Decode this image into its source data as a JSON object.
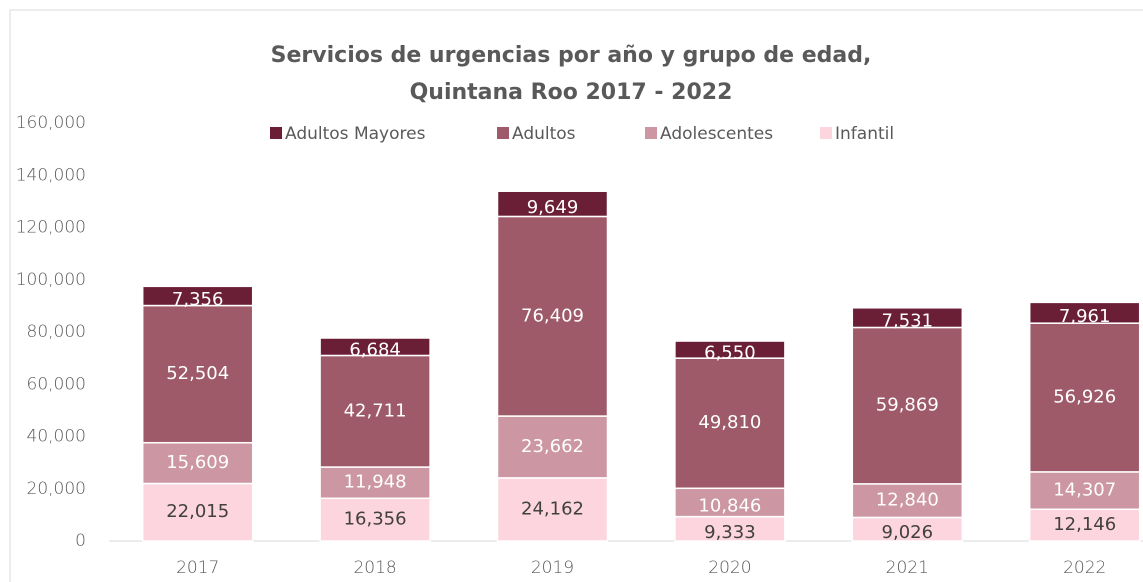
{
  "chart_data": {
    "type": "stacked_bar",
    "title": [
      "Servicios de urgencias por año y grupo de edad,",
      "Quintana Roo 2017 - 2022"
    ],
    "categories": [
      "2017",
      "2018",
      "2019",
      "2020",
      "2021",
      "2022"
    ],
    "series": [
      {
        "name": "Infantil",
        "color": "#fcd5de",
        "label_color": "#404040",
        "values": [
          22015,
          16356,
          24162,
          9333,
          9026,
          12146
        ],
        "value_labels": [
          "22,015",
          "16,356",
          "24,162",
          "9,333",
          "9,026",
          "12,146"
        ]
      },
      {
        "name": "Adolescentes",
        "color": "#cc96a2",
        "label_color": "#ffffff",
        "values": [
          15609,
          11948,
          23662,
          10846,
          12840,
          14307
        ],
        "value_labels": [
          "15,609",
          "11,948",
          "23,662",
          "10,846",
          "12,840",
          "14,307"
        ]
      },
      {
        "name": "Adultos",
        "color": "#9e5a68",
        "label_color": "#ffffff",
        "values": [
          52504,
          42711,
          76409,
          49810,
          59869,
          56926
        ],
        "value_labels": [
          "52,504",
          "42,711",
          "76,409",
          "49,810",
          "59,869",
          "56,926"
        ]
      },
      {
        "name": "Adultos Mayores",
        "color": "#6b1f37",
        "label_color": "#ffffff",
        "values": [
          7356,
          6684,
          9649,
          6550,
          7531,
          7961
        ],
        "value_labels": [
          "7,356",
          "6,684",
          "9,649",
          "6,550",
          "7,531",
          "7,961"
        ]
      }
    ],
    "legend_order": [
      3,
      2,
      1,
      0
    ],
    "ylim": [
      0,
      160000
    ],
    "yticks": [
      0,
      {
        "value": 20000,
        "label": "20,000"
      },
      {
        "value": 40000,
        "label": "40,000"
      },
      {
        "value": 60000,
        "label": "60,000"
      },
      {
        "value": 80000,
        "label": "80,000"
      },
      {
        "value": 100000,
        "label": "100,000"
      },
      {
        "value": 120000,
        "label": "120,000"
      },
      {
        "value": 140000,
        "label": "140,000"
      },
      {
        "value": 160000,
        "label": "160,000"
      }
    ],
    "grid": false,
    "legend": "top"
  }
}
